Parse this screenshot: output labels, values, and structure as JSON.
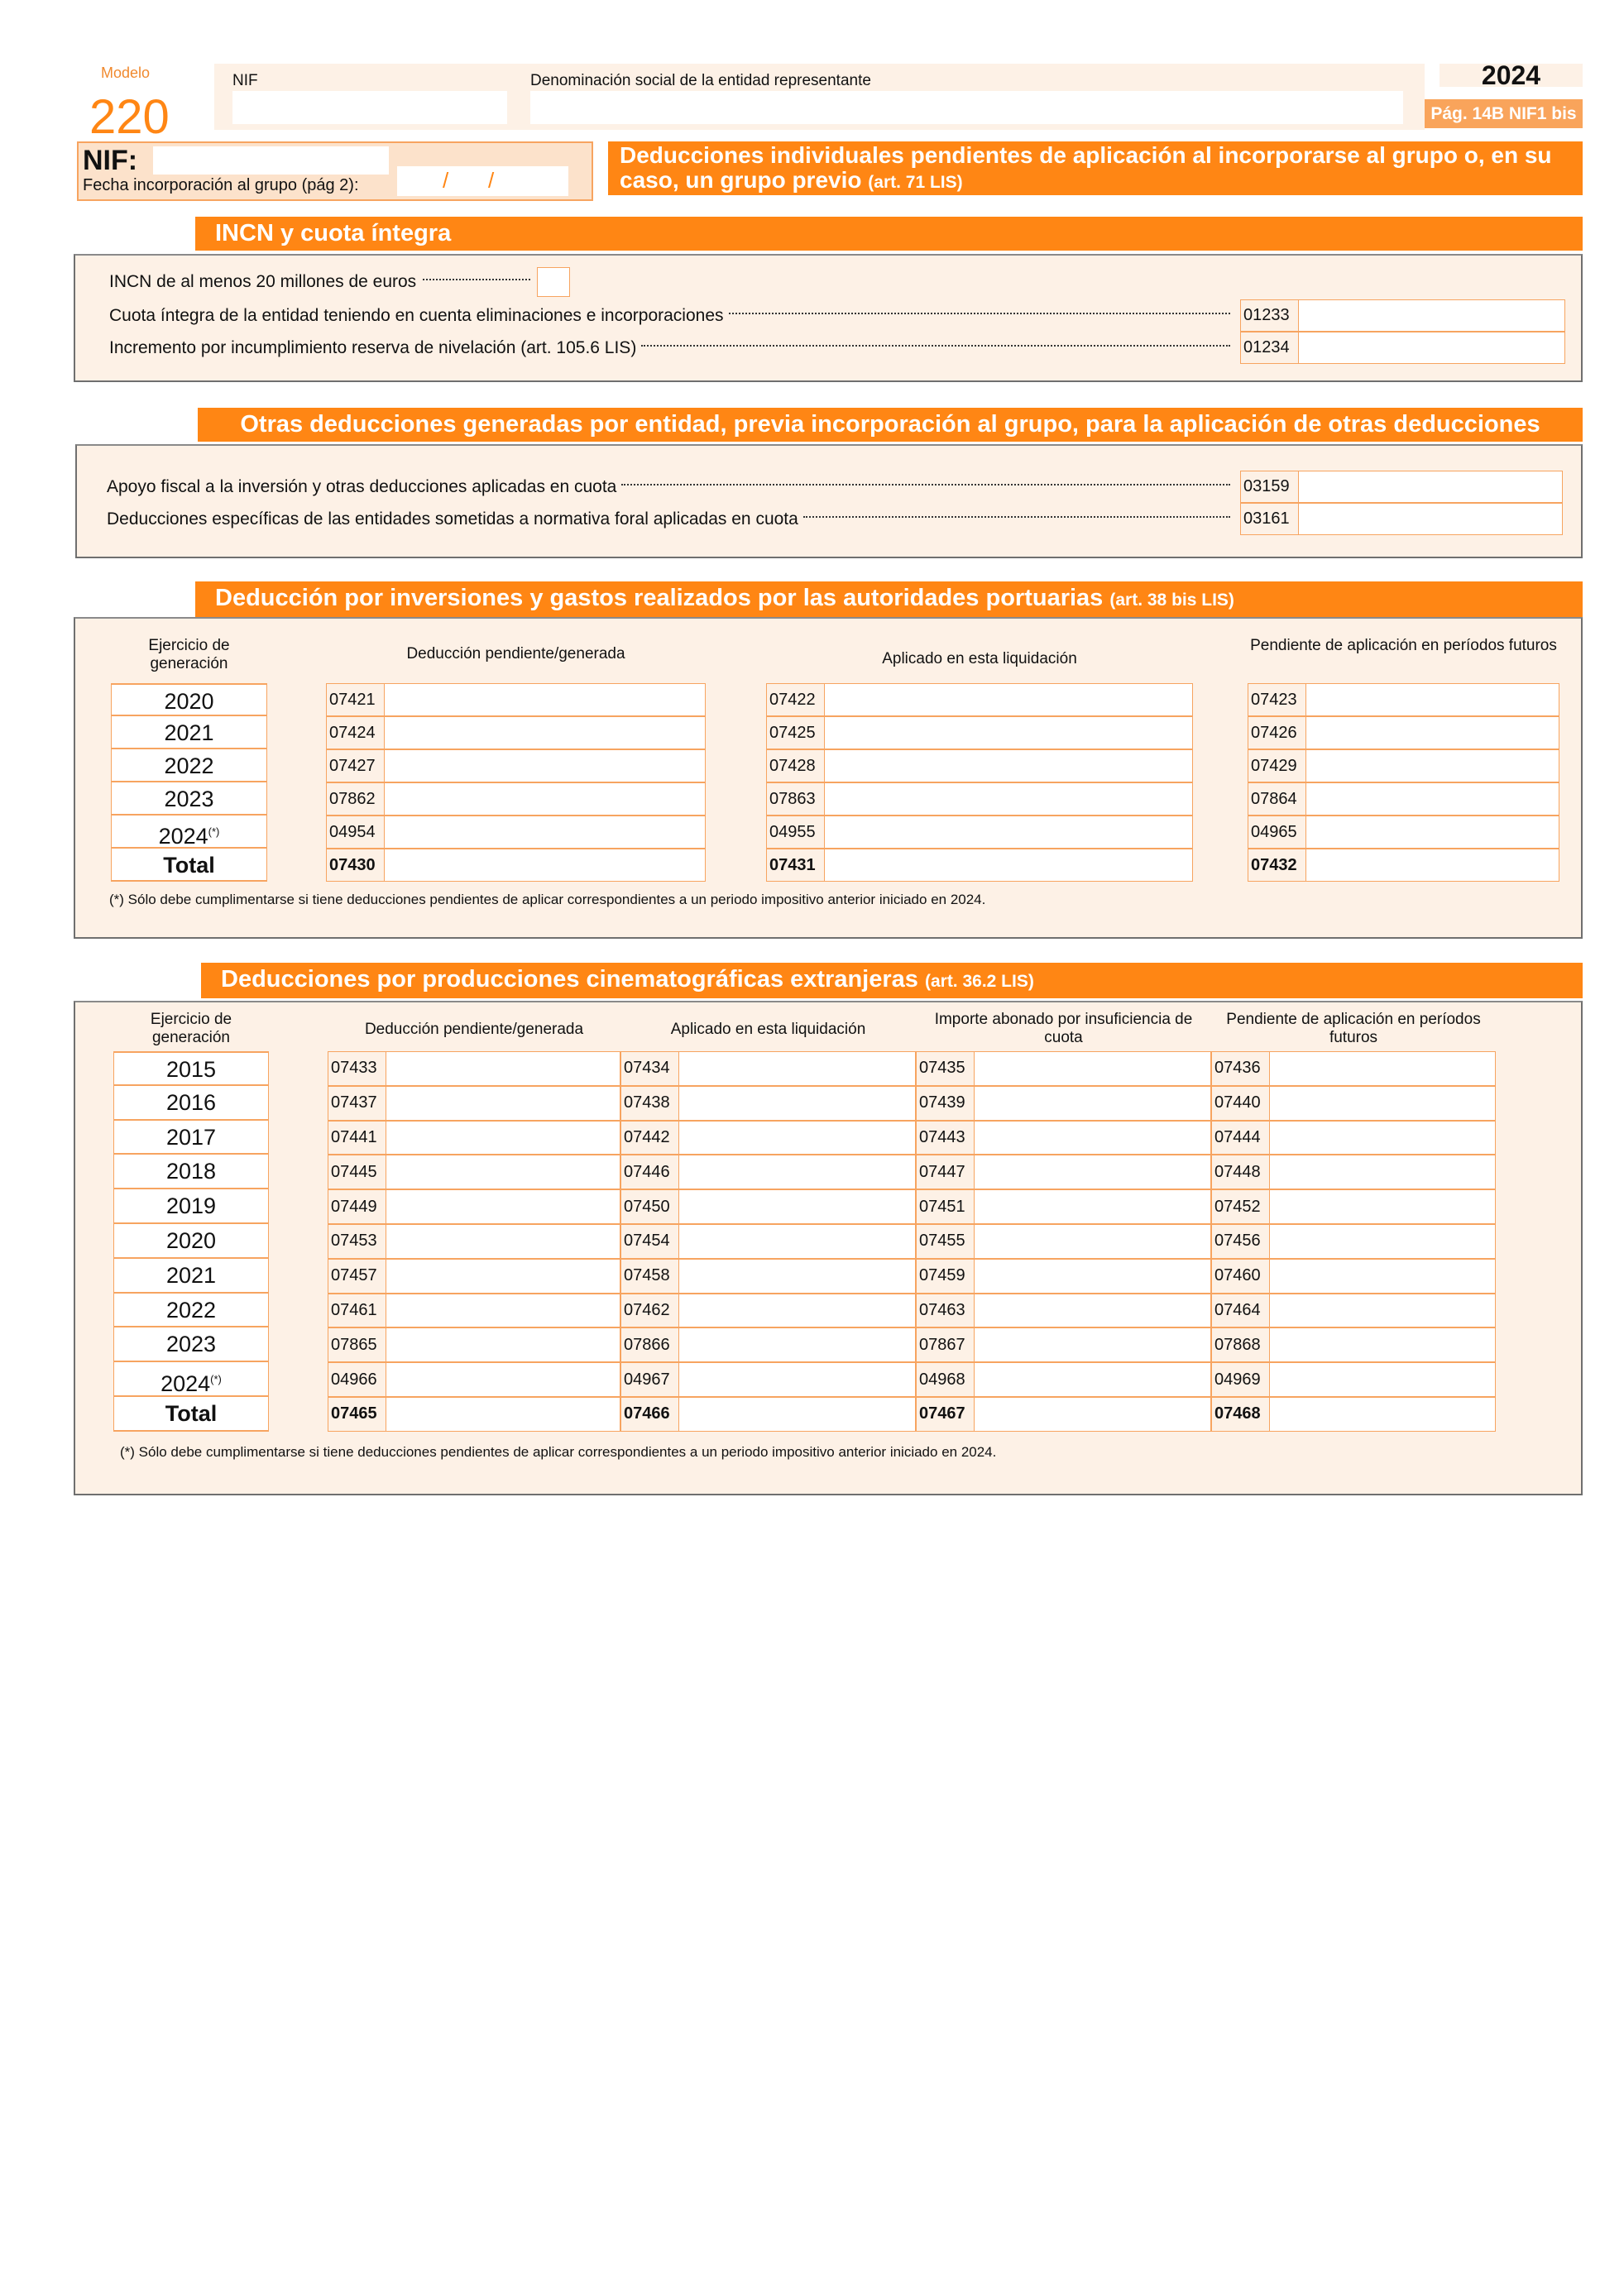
{
  "header": {
    "modelo_label": "Modelo",
    "modelo_number": "220",
    "nif_label": "NIF",
    "denominacion_label": "Denominación social de la entidad representante",
    "year": "2024",
    "page_label": "Pág. 14B NIF1 bis",
    "nif_big_label": "NIF:",
    "fecha_label": "Fecha incorporación al grupo  (pág 2):",
    "fecha_sep1": "/",
    "fecha_sep2": "/",
    "title": "Deducciones individuales pendientes de aplicación al incorporarse al grupo o, en su caso, un grupo previo",
    "title_ref": "(art. 71 LIS)"
  },
  "incn": {
    "title": "INCN y cuota íntegra",
    "checkbox_label": "INCN de al menos 20 millones de euros",
    "rows": [
      {
        "label": "Cuota íntegra de la entidad teniendo en cuenta eliminaciones e incorporaciones",
        "code": "01233"
      },
      {
        "label": "Incremento por incumplimiento reserva de nivelación (art. 105.6 LIS)",
        "code": "01234"
      }
    ]
  },
  "otras": {
    "title": "Otras deducciones generadas por entidad, previa incorporación al grupo, para la aplicación de otras deducciones",
    "rows": [
      {
        "label": "Apoyo fiscal a la inversión y otras deducciones aplicadas en cuota",
        "code": "03159"
      },
      {
        "label": "Deducciones específicas de las entidades sometidas a normativa foral aplicadas en cuota",
        "code": "03161"
      }
    ]
  },
  "portuarias": {
    "title": "Deducción por inversiones y gastos realizados por las autoridades portuarias",
    "title_ref": "(art. 38 bis LIS)",
    "columns": [
      "Ejercicio de generación",
      "Deducción pendiente/generada",
      "Aplicado en esta liquidación",
      "Pendiente de aplicación en períodos futuros"
    ],
    "rows": [
      {
        "year": "2020",
        "codes": [
          "07421",
          "07422",
          "07423"
        ]
      },
      {
        "year": "2021",
        "codes": [
          "07424",
          "07425",
          "07426"
        ]
      },
      {
        "year": "2022",
        "codes": [
          "07427",
          "07428",
          "07429"
        ]
      },
      {
        "year": "2023",
        "codes": [
          "07862",
          "07863",
          "07864"
        ]
      },
      {
        "year": "2024",
        "mark": "(*)",
        "codes": [
          "04954",
          "04955",
          "04965"
        ]
      },
      {
        "year": "Total",
        "total": true,
        "codes": [
          "07430",
          "07431",
          "07432"
        ]
      }
    ],
    "footnote": "(*) Sólo debe cumplimentarse si tiene deducciones pendientes de aplicar correspondientes a un periodo impositivo anterior iniciado en 2024."
  },
  "cine": {
    "title": "Deducciones por producciones cinematográficas extranjeras",
    "title_ref": "(art. 36.2 LIS)",
    "columns": [
      "Ejercicio de generación",
      "Deducción pendiente/generada",
      "Aplicado en esta liquidación",
      "Importe abonado por insuficiencia de cuota",
      "Pendiente de aplicación en períodos futuros"
    ],
    "rows": [
      {
        "year": "2015",
        "codes": [
          "07433",
          "07434",
          "07435",
          "07436"
        ]
      },
      {
        "year": "2016",
        "codes": [
          "07437",
          "07438",
          "07439",
          "07440"
        ]
      },
      {
        "year": "2017",
        "codes": [
          "07441",
          "07442",
          "07443",
          "07444"
        ]
      },
      {
        "year": "2018",
        "codes": [
          "07445",
          "07446",
          "07447",
          "07448"
        ]
      },
      {
        "year": "2019",
        "codes": [
          "07449",
          "07450",
          "07451",
          "07452"
        ]
      },
      {
        "year": "2020",
        "codes": [
          "07453",
          "07454",
          "07455",
          "07456"
        ]
      },
      {
        "year": "2021",
        "codes": [
          "07457",
          "07458",
          "07459",
          "07460"
        ]
      },
      {
        "year": "2022",
        "codes": [
          "07461",
          "07462",
          "07463",
          "07464"
        ]
      },
      {
        "year": "2023",
        "codes": [
          "07865",
          "07866",
          "07867",
          "07868"
        ]
      },
      {
        "year": "2024",
        "mark": "(*)",
        "codes": [
          "04966",
          "04967",
          "04968",
          "04969"
        ]
      },
      {
        "year": "Total",
        "total": true,
        "codes": [
          "07465",
          "07466",
          "07467",
          "07468"
        ]
      }
    ],
    "footnote": "(*) Sólo debe cumplimentarse si tiene deducciones pendientes de aplicar correspondientes a un periodo impositivo anterior iniciado en 2024."
  },
  "colors": {
    "accent": "#FF8614",
    "panel": "#FDF1E6",
    "field_border": "#F7A460"
  }
}
